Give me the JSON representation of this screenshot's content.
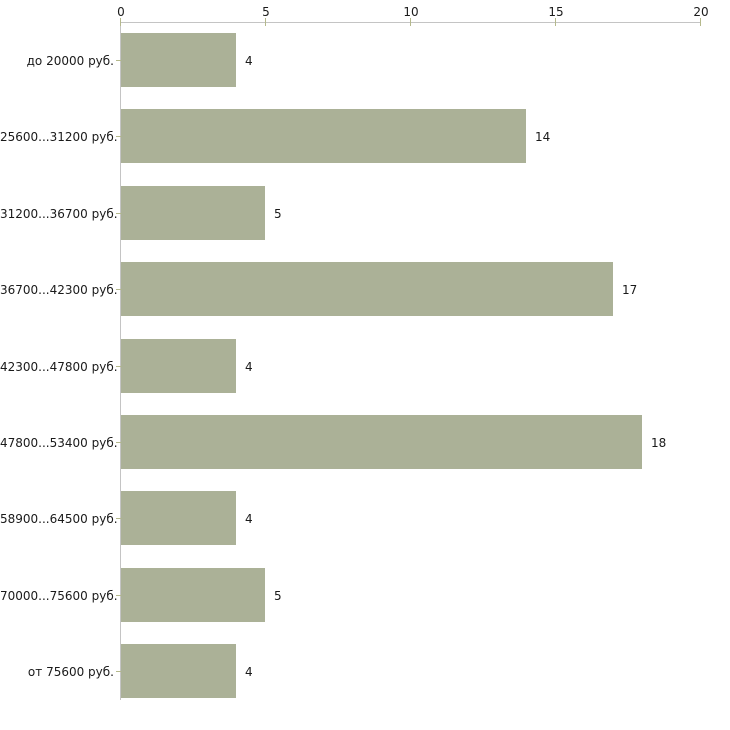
{
  "chart_data": {
    "type": "bar",
    "orientation": "horizontal",
    "title": "",
    "xlabel": "",
    "ylabel": "",
    "categories": [
      "до 20000 руб.",
      "25600...31200 руб.",
      "31200...36700 руб.",
      "36700...42300 руб.",
      "42300...47800 руб.",
      "47800...53400 руб.",
      "58900...64500 руб.",
      "70000...75600 руб.",
      "от 75600 руб."
    ],
    "values": [
      4,
      14,
      5,
      17,
      4,
      18,
      4,
      5,
      4
    ],
    "value_labels": [
      "4",
      "14",
      "5",
      "17",
      "4",
      "18",
      "4",
      "5",
      "4"
    ],
    "x_ticks": [
      0,
      5,
      10,
      15,
      20
    ],
    "xlim": [
      0,
      20
    ],
    "grid": false,
    "legend": null,
    "colors": {
      "bar": "#abb197",
      "axis_line": "#c4c4c4",
      "tick_mark": "#b5b98c",
      "text": "#1a1a1a",
      "background": "#ffffff"
    }
  }
}
